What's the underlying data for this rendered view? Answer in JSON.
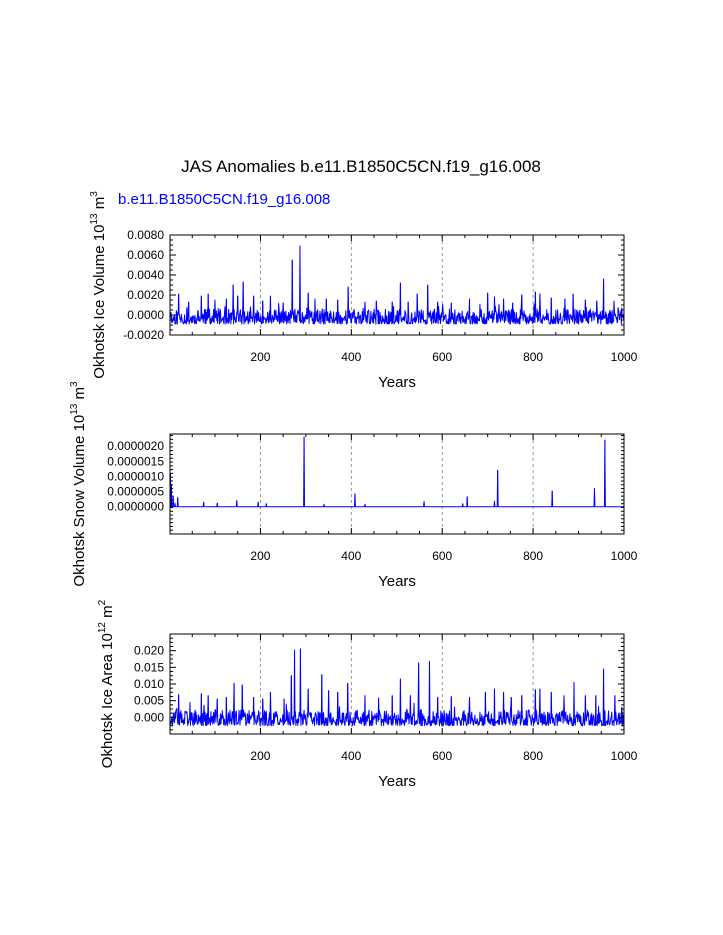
{
  "colors": {
    "series": "#0000ff",
    "text": "#000000",
    "grid": "#808080"
  },
  "main_title": "JAS Anomalies b.e11.B1850C5CN.f19_g16.008",
  "legend_text": "b.e11.B1850C5CN.f19_g16.008",
  "chart_data": [
    {
      "type": "line",
      "name": "ice-volume",
      "ylabel_main": "Okhotsk Ice Volume 10",
      "ylabel_sup": "13",
      "ylabel_tail": " m",
      "ylabel_sup2": "3",
      "xlabel": "Years",
      "xlim": [
        1,
        1000
      ],
      "ylim": [
        -0.002,
        0.008
      ],
      "xticks": [
        200,
        400,
        600,
        800,
        1000
      ],
      "xtick_labels": [
        "200",
        "400",
        "600",
        "800",
        "1000"
      ],
      "yticks": [
        -0.002,
        0.0,
        0.002,
        0.004,
        0.006,
        0.008
      ],
      "ytick_labels": [
        "-0.0020",
        "0.0000",
        "0.0020",
        "0.0040",
        "0.0060",
        "0.0080"
      ],
      "grid_x": [
        200,
        400,
        600,
        800
      ],
      "spikes": [
        [
          20,
          0.0021
        ],
        [
          42,
          0.0013
        ],
        [
          70,
          0.0019
        ],
        [
          85,
          0.0021
        ],
        [
          100,
          0.0015
        ],
        [
          125,
          0.0016
        ],
        [
          140,
          0.003
        ],
        [
          150,
          0.0019
        ],
        [
          162,
          0.0033
        ],
        [
          185,
          0.0019
        ],
        [
          205,
          0.0014
        ],
        [
          222,
          0.0019
        ],
        [
          250,
          0.0012
        ],
        [
          270,
          0.0055
        ],
        [
          287,
          0.0069
        ],
        [
          305,
          0.0022
        ],
        [
          320,
          0.0016
        ],
        [
          345,
          0.0016
        ],
        [
          370,
          0.0015
        ],
        [
          393,
          0.0028
        ],
        [
          430,
          0.0013
        ],
        [
          455,
          0.0014
        ],
        [
          490,
          0.0013
        ],
        [
          508,
          0.0032
        ],
        [
          525,
          0.0013
        ],
        [
          545,
          0.0021
        ],
        [
          568,
          0.003
        ],
        [
          590,
          0.0013
        ],
        [
          620,
          0.0012
        ],
        [
          660,
          0.0016
        ],
        [
          700,
          0.0022
        ],
        [
          715,
          0.0018
        ],
        [
          735,
          0.0016
        ],
        [
          755,
          0.0012
        ],
        [
          775,
          0.002
        ],
        [
          805,
          0.0023
        ],
        [
          815,
          0.0021
        ],
        [
          840,
          0.0017
        ],
        [
          870,
          0.0016
        ],
        [
          888,
          0.0021
        ],
        [
          915,
          0.0015
        ],
        [
          940,
          0.0014
        ],
        [
          955,
          0.0036
        ],
        [
          978,
          0.0014
        ],
        [
          995,
          0.0007
        ]
      ],
      "noise_amp": 0.0006,
      "noise_low": -0.0009,
      "seed": 11
    },
    {
      "type": "line",
      "name": "snow-volume",
      "ylabel_main": "Okhotsk Snow Volume 10",
      "ylabel_sup": "13",
      "ylabel_tail": " m",
      "ylabel_sup2": "3",
      "xlabel": "Years",
      "xlim": [
        1,
        1000
      ],
      "ylim": [
        -9e-07,
        2.4e-06
      ],
      "xticks": [
        200,
        400,
        600,
        800,
        1000
      ],
      "xtick_labels": [
        "200",
        "400",
        "600",
        "800",
        "1000"
      ],
      "yticks": [
        0.0,
        5e-07,
        1e-06,
        1.5e-06,
        2e-06
      ],
      "ytick_labels": [
        "0.0000000",
        "0.0000005",
        "0.0000010",
        "0.0000015",
        "0.0000020"
      ],
      "grid_x": [
        200,
        400,
        600,
        800
      ],
      "spikes": [
        [
          2,
          1.1e-06
        ],
        [
          4,
          7e-07
        ],
        [
          8,
          3.5e-07
        ],
        [
          12,
          1.2e-07
        ],
        [
          18,
          3e-07
        ],
        [
          75,
          1.5e-07
        ],
        [
          105,
          1.2e-07
        ],
        [
          148,
          2e-07
        ],
        [
          195,
          1.5e-07
        ],
        [
          213,
          1e-07
        ],
        [
          296,
          2.3e-06
        ],
        [
          340,
          8e-08
        ],
        [
          408,
          4.3e-07
        ],
        [
          430,
          8e-08
        ],
        [
          560,
          1.7e-07
        ],
        [
          645,
          1e-07
        ],
        [
          655,
          3.3e-07
        ],
        [
          715,
          1.8e-07
        ],
        [
          722,
          1.2e-06
        ],
        [
          842,
          5.2e-07
        ],
        [
          935,
          6e-07
        ],
        [
          958,
          2.2e-06
        ]
      ],
      "noise_amp": 0,
      "noise_low": 0,
      "seed": 23
    },
    {
      "type": "line",
      "name": "ice-area",
      "ylabel_main": "Okhotsk Ice Area 10",
      "ylabel_sup": "12",
      "ylabel_tail": " m",
      "ylabel_sup2": "2",
      "xlabel": "Years",
      "xlim": [
        1,
        1000
      ],
      "ylim": [
        -0.005,
        0.025
      ],
      "xticks": [
        200,
        400,
        600,
        800,
        1000
      ],
      "xtick_labels": [
        "200",
        "400",
        "600",
        "800",
        "1000"
      ],
      "yticks": [
        0.0,
        0.005,
        0.01,
        0.015,
        0.02
      ],
      "ytick_labels": [
        "0.000",
        "0.005",
        "0.010",
        "0.015",
        "0.020"
      ],
      "grid_x": [
        200,
        400,
        600,
        800
      ],
      "spikes": [
        [
          20,
          0.0068
        ],
        [
          45,
          0.0045
        ],
        [
          70,
          0.0071
        ],
        [
          85,
          0.0065
        ],
        [
          105,
          0.0055
        ],
        [
          125,
          0.006
        ],
        [
          142,
          0.0102
        ],
        [
          160,
          0.0097
        ],
        [
          185,
          0.006
        ],
        [
          205,
          0.0055
        ],
        [
          222,
          0.0075
        ],
        [
          252,
          0.0055
        ],
        [
          268,
          0.0125
        ],
        [
          275,
          0.0202
        ],
        [
          288,
          0.0205
        ],
        [
          305,
          0.0085
        ],
        [
          335,
          0.0128
        ],
        [
          350,
          0.008
        ],
        [
          370,
          0.0075
        ],
        [
          392,
          0.0102
        ],
        [
          430,
          0.0065
        ],
        [
          460,
          0.0058
        ],
        [
          490,
          0.0065
        ],
        [
          508,
          0.0115
        ],
        [
          530,
          0.0065
        ],
        [
          548,
          0.0163
        ],
        [
          572,
          0.0168
        ],
        [
          590,
          0.006
        ],
        [
          620,
          0.0062
        ],
        [
          660,
          0.006
        ],
        [
          695,
          0.0075
        ],
        [
          715,
          0.0085
        ],
        [
          735,
          0.0075
        ],
        [
          752,
          0.006
        ],
        [
          775,
          0.0065
        ],
        [
          805,
          0.0083
        ],
        [
          815,
          0.0085
        ],
        [
          840,
          0.0075
        ],
        [
          868,
          0.0065
        ],
        [
          890,
          0.0105
        ],
        [
          915,
          0.0065
        ],
        [
          938,
          0.0065
        ],
        [
          955,
          0.0145
        ],
        [
          980,
          0.0065
        ],
        [
          995,
          0.003
        ]
      ],
      "noise_amp": 0.0022,
      "noise_low": -0.0025,
      "seed": 37
    }
  ]
}
